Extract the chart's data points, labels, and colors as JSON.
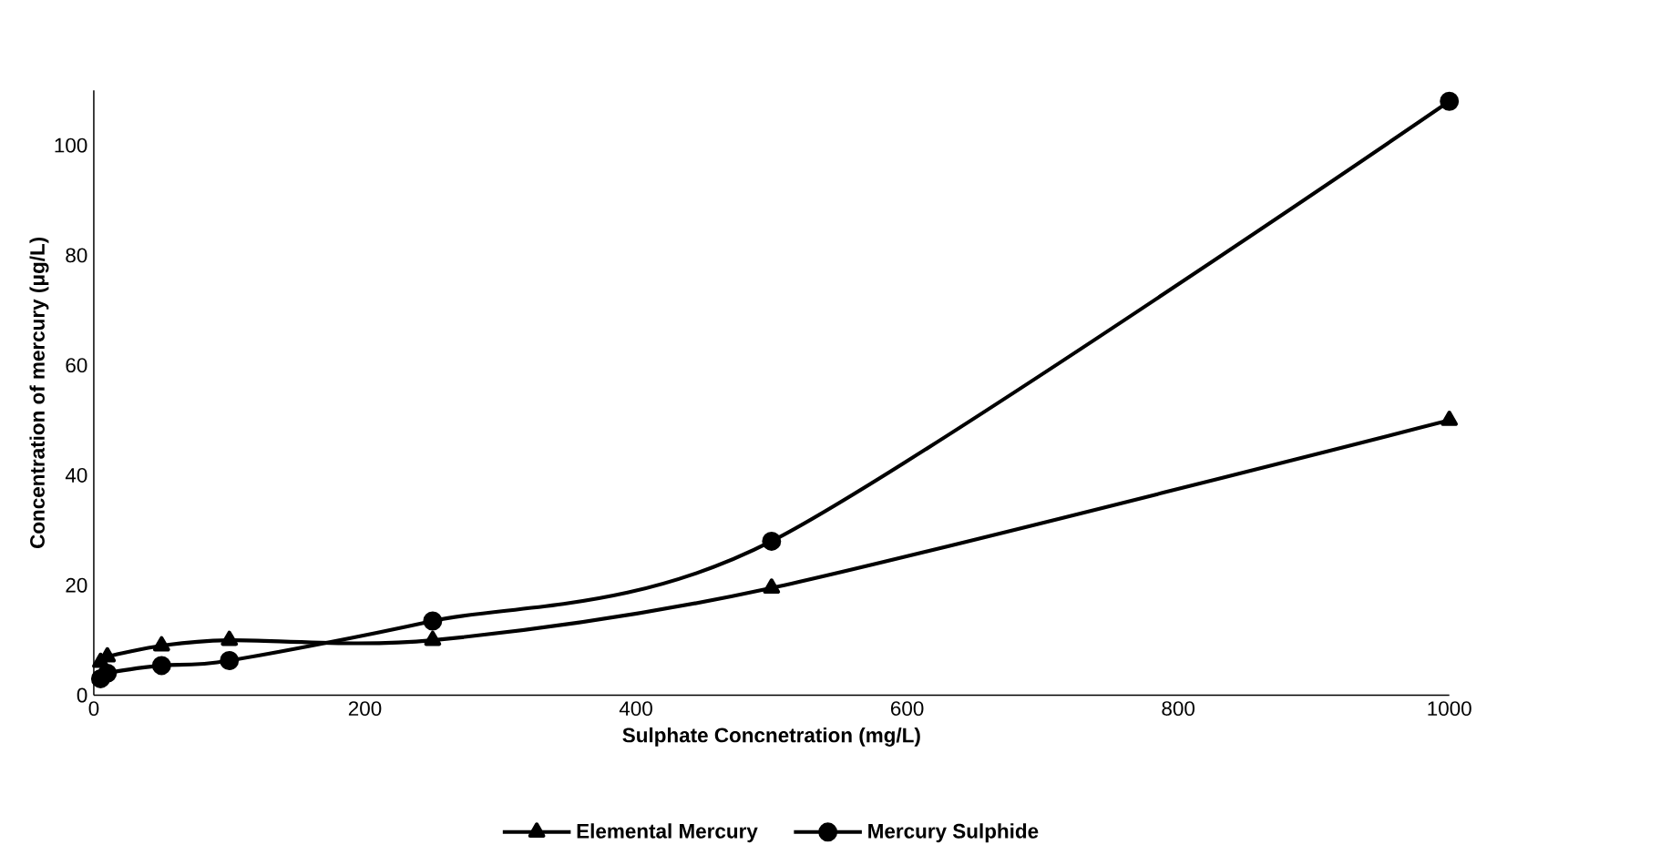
{
  "chart_data": {
    "type": "line",
    "xlabel": "Sulphate Concnetration (mg/L)",
    "ylabel": "Concentration of mercury (μg/L)",
    "xlim": [
      0,
      1000
    ],
    "xticks": [
      0,
      200,
      400,
      600,
      800,
      1000
    ],
    "ylim": [
      0,
      110
    ],
    "yticks": [
      0,
      20,
      40,
      60,
      80,
      100
    ],
    "legend": "bottom",
    "series": [
      {
        "name": "Elemental Mercury",
        "color": "#000000",
        "marker": "triangle",
        "x": [
          5,
          10,
          50,
          100,
          250,
          500,
          1000
        ],
        "values": [
          6,
          7,
          9,
          10,
          10,
          19.5,
          50
        ]
      },
      {
        "name": "Mercury Sulphide",
        "color": "#000000",
        "marker": "circle",
        "x": [
          5,
          10,
          50,
          100,
          250,
          500,
          1000
        ],
        "values": [
          3,
          4,
          5.4,
          6.3,
          13.5,
          28,
          108
        ]
      }
    ]
  }
}
